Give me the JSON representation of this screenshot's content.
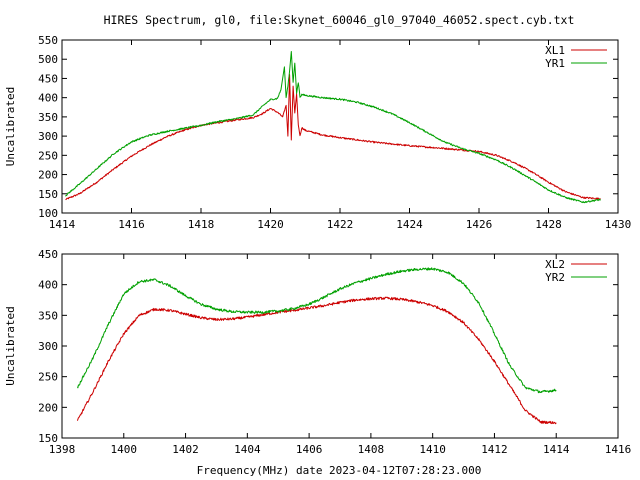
{
  "title": "HIRES Spectrum, gl0, file:Skynet_60046_gl0_97040_46052.spect.cyb.txt",
  "xlabel": "Frequency(MHz) date 2023-04-12T07:28:23.000",
  "colors": {
    "red": "#cc0000",
    "green": "#00a000"
  },
  "chart_data": [
    {
      "type": "line",
      "title": "HIRES Spectrum, gl0, file:Skynet_60046_gl0_97040_46052.spect.cyb.txt",
      "xlabel": "",
      "ylabel": "Uncalibrated",
      "xlim": [
        1414,
        1430
      ],
      "ylim": [
        100,
        550
      ],
      "xticks": [
        1414,
        1416,
        1418,
        1420,
        1422,
        1424,
        1426,
        1428,
        1430
      ],
      "yticks": [
        100,
        150,
        200,
        250,
        300,
        350,
        400,
        450,
        500,
        550
      ],
      "legend": "top-right",
      "grid": false,
      "series": [
        {
          "name": "XL1",
          "color": "#cc0000",
          "x": [
            1414.1,
            1414.5,
            1415.0,
            1415.5,
            1416.0,
            1416.5,
            1417.0,
            1417.5,
            1418.0,
            1418.5,
            1419.0,
            1419.5,
            1419.8,
            1420.0,
            1420.2,
            1420.35,
            1420.45,
            1420.5,
            1420.55,
            1420.6,
            1420.65,
            1420.7,
            1420.75,
            1420.8,
            1420.85,
            1420.9,
            1421.0,
            1421.5,
            1422.0,
            1423.0,
            1424.0,
            1425.0,
            1426.0,
            1426.5,
            1427.0,
            1427.5,
            1428.0,
            1428.5,
            1429.0,
            1429.5
          ],
          "values": [
            135,
            150,
            180,
            215,
            248,
            275,
            298,
            315,
            328,
            335,
            342,
            348,
            360,
            372,
            362,
            350,
            380,
            300,
            460,
            290,
            430,
            360,
            410,
            330,
            300,
            322,
            315,
            303,
            296,
            284,
            275,
            268,
            260,
            250,
            232,
            208,
            180,
            155,
            140,
            137
          ]
        },
        {
          "name": "YR1",
          "color": "#00a000",
          "x": [
            1414.1,
            1414.5,
            1415.0,
            1415.5,
            1416.0,
            1416.5,
            1417.0,
            1417.5,
            1418.0,
            1418.5,
            1419.0,
            1419.5,
            1419.8,
            1420.0,
            1420.2,
            1420.3,
            1420.4,
            1420.45,
            1420.5,
            1420.55,
            1420.6,
            1420.65,
            1420.7,
            1420.75,
            1420.8,
            1420.85,
            1420.9,
            1421.0,
            1421.5,
            1422.0,
            1422.5,
            1423.0,
            1423.5,
            1424.0,
            1424.5,
            1425.0,
            1425.5,
            1426.0,
            1426.5,
            1427.0,
            1427.5,
            1428.0,
            1428.5,
            1429.0,
            1429.5
          ],
          "values": [
            145,
            175,
            215,
            255,
            285,
            302,
            312,
            320,
            328,
            338,
            345,
            355,
            380,
            395,
            398,
            420,
            480,
            400,
            430,
            470,
            520,
            440,
            490,
            410,
            440,
            402,
            408,
            406,
            400,
            396,
            388,
            375,
            358,
            335,
            310,
            285,
            268,
            255,
            238,
            215,
            188,
            160,
            140,
            128,
            135
          ]
        }
      ]
    },
    {
      "type": "line",
      "title": "",
      "xlabel": "Frequency(MHz) date 2023-04-12T07:28:23.000",
      "ylabel": "Uncalibrated",
      "xlim": [
        1398,
        1416
      ],
      "ylim": [
        150,
        450
      ],
      "xticks": [
        1398,
        1400,
        1402,
        1404,
        1406,
        1408,
        1410,
        1412,
        1414,
        1416
      ],
      "yticks": [
        150,
        200,
        250,
        300,
        350,
        400,
        450
      ],
      "legend": "top-right",
      "grid": false,
      "series": [
        {
          "name": "XL2",
          "color": "#cc0000",
          "x": [
            1398.5,
            1399.0,
            1399.5,
            1400.0,
            1400.5,
            1401.0,
            1401.5,
            1402.0,
            1402.5,
            1403.0,
            1403.5,
            1404.0,
            1404.5,
            1405.0,
            1405.5,
            1406.0,
            1406.5,
            1407.0,
            1407.5,
            1408.0,
            1408.5,
            1409.0,
            1409.5,
            1410.0,
            1410.5,
            1411.0,
            1411.5,
            1412.0,
            1412.5,
            1413.0,
            1413.5,
            1414.0
          ],
          "values": [
            178,
            225,
            275,
            320,
            350,
            360,
            358,
            352,
            346,
            343,
            344,
            347,
            351,
            355,
            358,
            362,
            366,
            371,
            375,
            377,
            378,
            376,
            372,
            366,
            356,
            338,
            310,
            275,
            235,
            195,
            176,
            175
          ]
        },
        {
          "name": "YR2",
          "color": "#00a000",
          "x": [
            1398.5,
            1399.0,
            1399.5,
            1400.0,
            1400.5,
            1401.0,
            1401.5,
            1402.0,
            1402.5,
            1403.0,
            1403.5,
            1404.0,
            1404.5,
            1405.0,
            1405.5,
            1406.0,
            1406.5,
            1407.0,
            1407.5,
            1408.0,
            1408.5,
            1409.0,
            1409.5,
            1410.0,
            1410.5,
            1411.0,
            1411.5,
            1412.0,
            1412.5,
            1413.0,
            1413.5,
            1414.0
          ],
          "values": [
            232,
            280,
            335,
            385,
            405,
            408,
            398,
            382,
            368,
            360,
            356,
            355,
            355,
            357,
            361,
            368,
            380,
            393,
            403,
            410,
            417,
            422,
            425,
            426,
            420,
            402,
            370,
            320,
            268,
            232,
            225,
            228
          ]
        }
      ]
    }
  ]
}
